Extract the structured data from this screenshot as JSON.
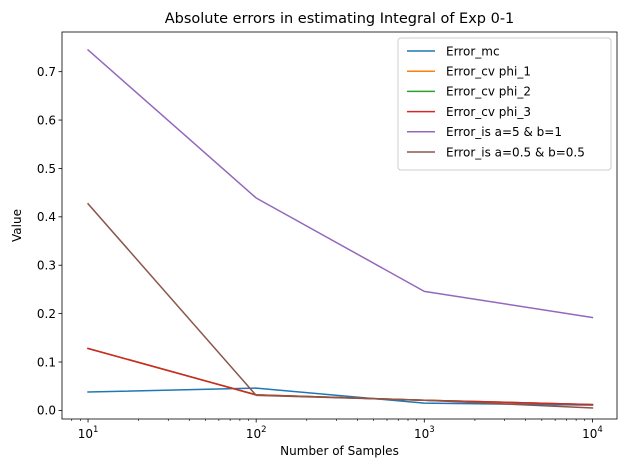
{
  "chart_data": {
    "type": "line",
    "title": "Absolute errors in estimating Integral of Exp 0-1",
    "xlabel": "Number of Samples",
    "ylabel": "Value",
    "x_scale": "log",
    "x": [
      10,
      100,
      1000,
      10000
    ],
    "x_ticks": [
      {
        "value": 10,
        "base": "10",
        "exp": "1"
      },
      {
        "value": 100,
        "base": "10",
        "exp": "2"
      },
      {
        "value": 1000,
        "base": "10",
        "exp": "3"
      },
      {
        "value": 10000,
        "base": "10",
        "exp": "4"
      }
    ],
    "xlim": [
      7.0,
      14000
    ],
    "ylim": [
      -0.0178,
      0.782
    ],
    "y_ticks": [
      "0.0",
      "0.1",
      "0.2",
      "0.3",
      "0.4",
      "0.5",
      "0.6",
      "0.7"
    ],
    "grid": false,
    "legend_position": "top-right",
    "series": [
      {
        "name": "Error_mc",
        "color": "#1f77b4",
        "values": [
          0.038,
          0.046,
          0.015,
          0.011
        ]
      },
      {
        "name": "Error_cv phi_1",
        "color": "#ff7f0e",
        "values": [
          0.128,
          0.032,
          0.021,
          0.012
        ]
      },
      {
        "name": "Error_cv phi_2",
        "color": "#2ca02c",
        "values": [
          0.128,
          0.032,
          0.021,
          0.012
        ]
      },
      {
        "name": "Error_cv phi_3",
        "color": "#d62728",
        "values": [
          0.128,
          0.032,
          0.021,
          0.012
        ]
      },
      {
        "name": "Error_is a=5 & b=1",
        "color": "#9467bd",
        "values": [
          0.745,
          0.439,
          0.246,
          0.192
        ]
      },
      {
        "name": "Error_is a=0.5 & b=0.5",
        "color": "#8c564b",
        "values": [
          0.427,
          0.031,
          0.021,
          0.005
        ]
      }
    ]
  }
}
